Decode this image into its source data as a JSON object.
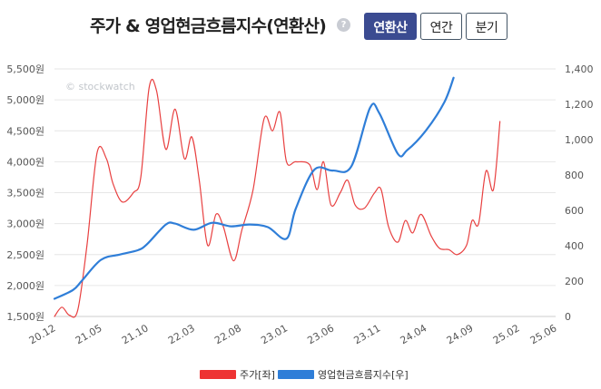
{
  "header": {
    "title": "주가 & 영업현금흐름지수(연환산)",
    "help_icon": "?",
    "buttons": [
      {
        "label": "연환산",
        "active": true
      },
      {
        "label": "연간",
        "active": false
      },
      {
        "label": "분기",
        "active": false
      }
    ]
  },
  "watermark": "© stockwatch",
  "colors": {
    "price": "#e84040",
    "cashflow": "#2f7ed8",
    "grid": "#e6e6e6",
    "active_button": "#3b4b91"
  },
  "legend": [
    {
      "label": "주가[좌]",
      "color": "#ee3333"
    },
    {
      "label": "영업현금흐름지수[우]",
      "color": "#2f7ed8"
    }
  ],
  "chart_data": {
    "type": "line",
    "x_range": [
      0,
      54
    ],
    "x_ticks": [
      {
        "label": "20.12",
        "x": 0
      },
      {
        "label": "21.05",
        "x": 5
      },
      {
        "label": "21.10",
        "x": 10
      },
      {
        "label": "22.03",
        "x": 15
      },
      {
        "label": "22.08",
        "x": 20
      },
      {
        "label": "23.01",
        "x": 25
      },
      {
        "label": "23.06",
        "x": 30
      },
      {
        "label": "23.11",
        "x": 35
      },
      {
        "label": "24.04",
        "x": 40
      },
      {
        "label": "24.09",
        "x": 45
      },
      {
        "label": "25.02",
        "x": 50
      },
      {
        "label": "25.06",
        "x": 54
      }
    ],
    "y_left": {
      "min": 1500,
      "max": 5500,
      "ticks": [
        1500,
        2000,
        2500,
        3000,
        3500,
        4000,
        4500,
        5000,
        5500
      ],
      "tick_labels": [
        "1,500원",
        "2,000원",
        "2,500원",
        "3,000원",
        "3,500원",
        "4,000원",
        "4,500원",
        "5,000원",
        "5,500원"
      ]
    },
    "y_right": {
      "min": 0,
      "max": 1400,
      "ticks": [
        0,
        200,
        400,
        600,
        800,
        1000,
        1200,
        1400
      ],
      "tick_labels": [
        "0",
        "200",
        "400",
        "600",
        "800",
        "1,000",
        "1,200",
        "1,400"
      ]
    },
    "series": [
      {
        "name": "주가[좌]",
        "axis": "left",
        "points": [
          [
            0,
            1500
          ],
          [
            0.8,
            1650
          ],
          [
            1.6,
            1520
          ],
          [
            2.5,
            1600
          ],
          [
            3.5,
            2650
          ],
          [
            4.6,
            4150
          ],
          [
            5.6,
            4050
          ],
          [
            6.3,
            3650
          ],
          [
            7.3,
            3350
          ],
          [
            8.5,
            3500
          ],
          [
            9.3,
            3750
          ],
          [
            10.2,
            5200
          ],
          [
            11,
            5150
          ],
          [
            12,
            4200
          ],
          [
            13,
            4850
          ],
          [
            14,
            4050
          ],
          [
            14.8,
            4400
          ],
          [
            15.6,
            3700
          ],
          [
            16.5,
            2650
          ],
          [
            17.4,
            3150
          ],
          [
            18.2,
            2950
          ],
          [
            19.3,
            2400
          ],
          [
            20.2,
            2900
          ],
          [
            21.4,
            3550
          ],
          [
            22.6,
            4700
          ],
          [
            23.5,
            4500
          ],
          [
            24.3,
            4800
          ],
          [
            25,
            4000
          ],
          [
            26,
            4000
          ],
          [
            27.5,
            3950
          ],
          [
            28.3,
            3550
          ],
          [
            29,
            4000
          ],
          [
            29.8,
            3300
          ],
          [
            30.8,
            3500
          ],
          [
            31.6,
            3700
          ],
          [
            32.4,
            3300
          ],
          [
            33.4,
            3250
          ],
          [
            34.5,
            3500
          ],
          [
            35.2,
            3550
          ],
          [
            36,
            2950
          ],
          [
            37,
            2700
          ],
          [
            37.8,
            3050
          ],
          [
            38.6,
            2850
          ],
          [
            39.5,
            3150
          ],
          [
            40.6,
            2800
          ],
          [
            41.5,
            2600
          ],
          [
            42.5,
            2580
          ],
          [
            43.4,
            2500
          ],
          [
            44.4,
            2650
          ],
          [
            45,
            3050
          ],
          [
            45.7,
            3000
          ],
          [
            46.5,
            3850
          ],
          [
            47.3,
            3550
          ],
          [
            48,
            4650
          ]
        ]
      },
      {
        "name": "영업현금흐름지수[우]",
        "axis": "right",
        "points": [
          [
            0,
            100
          ],
          [
            2,
            150
          ],
          [
            3,
            205
          ],
          [
            5,
            320
          ],
          [
            7,
            350
          ],
          [
            9,
            375
          ],
          [
            10,
            410
          ],
          [
            12,
            520
          ],
          [
            13,
            525
          ],
          [
            15,
            490
          ],
          [
            17,
            530
          ],
          [
            19,
            510
          ],
          [
            21,
            520
          ],
          [
            23,
            505
          ],
          [
            25,
            440
          ],
          [
            26,
            610
          ],
          [
            28,
            830
          ],
          [
            30,
            825
          ],
          [
            32,
            850
          ],
          [
            34,
            1180
          ],
          [
            35,
            1150
          ],
          [
            37,
            920
          ],
          [
            38,
            940
          ],
          [
            40,
            1050
          ],
          [
            42,
            1210
          ],
          [
            43,
            1350
          ]
        ]
      }
    ]
  }
}
